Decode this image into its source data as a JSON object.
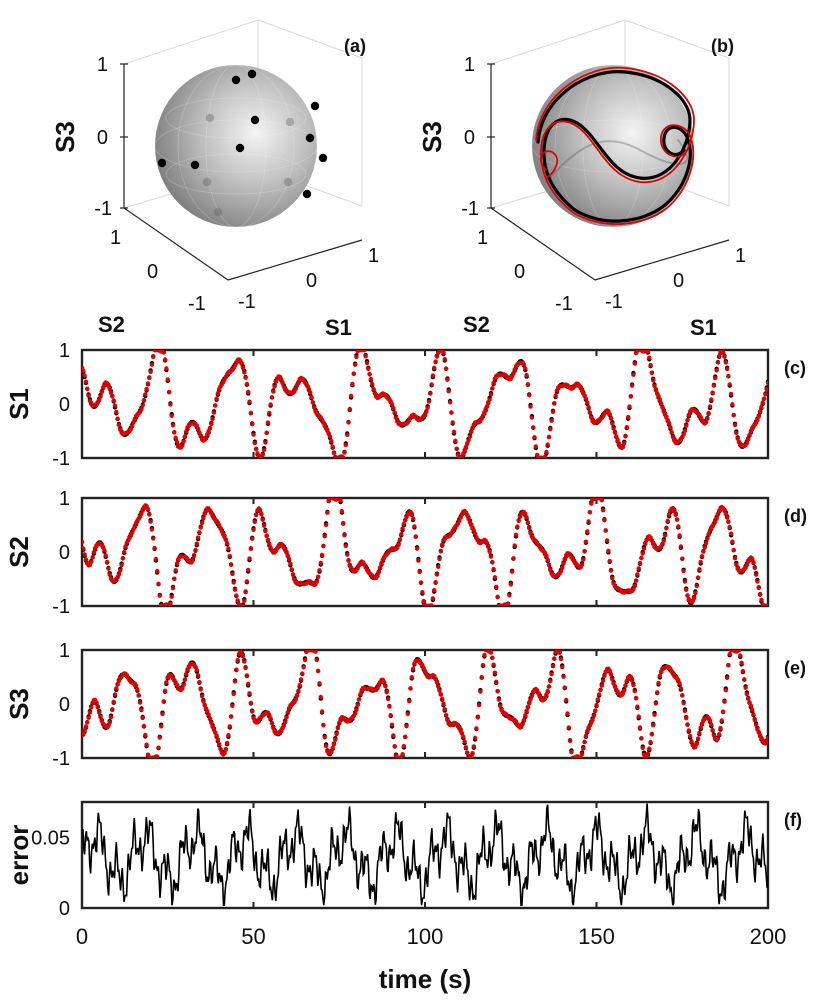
{
  "colors": {
    "reference": "#000000",
    "reconstructed": "#e00000",
    "error": "#000000",
    "sphere": "#b8b8b8",
    "axes": "#222222"
  },
  "panels": {
    "a": {
      "tag": "(a)",
      "zlabel": "S3",
      "xlabel": "S1",
      "ylabel": "S2",
      "zticks": [
        "1",
        "0",
        "-1"
      ],
      "yticks": [
        "1",
        "0",
        "-1"
      ],
      "xticks": [
        "-1",
        "0",
        "1"
      ]
    },
    "b": {
      "tag": "(b)",
      "zlabel": "S3",
      "xlabel": "S1",
      "ylabel": "S2",
      "zticks": [
        "1",
        "0",
        "-1"
      ],
      "yticks": [
        "1",
        "0",
        "-1"
      ],
      "xticks": [
        "-1",
        "0",
        "1"
      ]
    }
  },
  "chart_data": [
    {
      "id": "c",
      "type": "line",
      "tag": "(c)",
      "ylabel": "S1",
      "ylim": [
        -1,
        1
      ],
      "yticks": [
        "1",
        "0",
        "-1"
      ],
      "xlim": [
        0,
        200
      ],
      "grid": false,
      "series": [
        {
          "style": "dots",
          "color": "#000000"
        },
        {
          "style": "dots",
          "color": "#e00000"
        }
      ]
    },
    {
      "id": "d",
      "type": "line",
      "tag": "(d)",
      "ylabel": "S2",
      "ylim": [
        -1,
        1
      ],
      "yticks": [
        "1",
        "0",
        "-1"
      ],
      "xlim": [
        0,
        200
      ],
      "grid": false,
      "series": [
        {
          "style": "dots",
          "color": "#000000"
        },
        {
          "style": "dots",
          "color": "#e00000"
        }
      ]
    },
    {
      "id": "e",
      "type": "line",
      "tag": "(e)",
      "ylabel": "S3",
      "ylim": [
        -1,
        1
      ],
      "yticks": [
        "1",
        "0",
        "-1"
      ],
      "xlim": [
        0,
        200
      ],
      "grid": false,
      "series": [
        {
          "style": "dots",
          "color": "#000000"
        },
        {
          "style": "dots",
          "color": "#e00000"
        }
      ]
    },
    {
      "id": "f",
      "type": "line",
      "tag": "(f)",
      "ylabel": "error",
      "ylim": [
        0,
        0.075
      ],
      "yticks": [
        "0.05",
        "0"
      ],
      "xlim": [
        0,
        200
      ],
      "xticks": [
        "0",
        "50",
        "100",
        "150",
        "200"
      ],
      "xlabel": "time (s)",
      "grid": false,
      "series": [
        {
          "style": "line",
          "color": "#000000"
        }
      ]
    }
  ]
}
